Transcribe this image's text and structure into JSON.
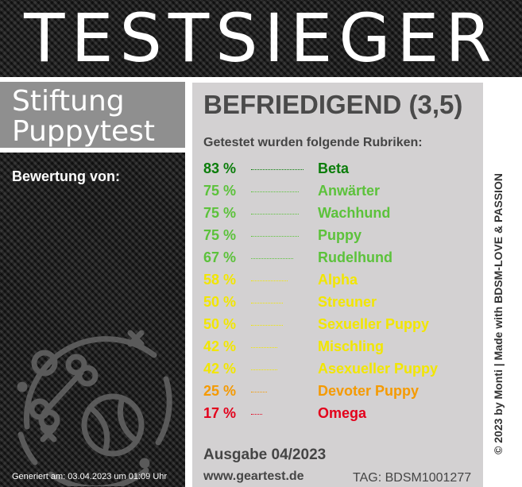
{
  "banner": {
    "title": "TESTSIEGER"
  },
  "brand": {
    "line1": "Stiftung",
    "line2": "Puppytest"
  },
  "rating_label": "Bewertung von:",
  "emblem_icon": "bone-ball-toy-icon",
  "grade": "BEFRIEDIGEND (3,5)",
  "intro": "Getestet wurden folgende Rubriken:",
  "categories": [
    {
      "percent": "83 %",
      "name": "Beta",
      "score": 83,
      "color": "#0a7d0a"
    },
    {
      "percent": "75 %",
      "name": "Anwärter",
      "score": 75,
      "color": "#5cc23b"
    },
    {
      "percent": "75 %",
      "name": "Wachhund",
      "score": 75,
      "color": "#5cc23b"
    },
    {
      "percent": "75 %",
      "name": "Puppy",
      "score": 75,
      "color": "#5cc23b"
    },
    {
      "percent": "67 %",
      "name": "Rudelhund",
      "score": 67,
      "color": "#5cc23b"
    },
    {
      "percent": "58 %",
      "name": "Alpha",
      "score": 58,
      "color": "#f2e600"
    },
    {
      "percent": "50 %",
      "name": "Streuner",
      "score": 50,
      "color": "#f2e600"
    },
    {
      "percent": "50 %",
      "name": "Sexueller Puppy",
      "score": 50,
      "color": "#f2e600"
    },
    {
      "percent": "42 %",
      "name": "Mischling",
      "score": 42,
      "color": "#f2e600"
    },
    {
      "percent": "42 %",
      "name": "Asexueller Puppy",
      "score": 42,
      "color": "#f2e600"
    },
    {
      "percent": "25 %",
      "name": "Devoter Puppy",
      "score": 25,
      "color": "#f59a00"
    },
    {
      "percent": "17 %",
      "name": "Omega",
      "score": 17,
      "color": "#e3001b"
    }
  ],
  "issue": "Ausgabe 04/2023",
  "website": "www.geartest.de",
  "tag": "TAG: BDSM1001277",
  "generated": "Generiert am: 03.04.2023 um 01:09 Uhr",
  "side_credit": "© 2023 by Monti | Made with BDSM-LOVE & PASSION"
}
